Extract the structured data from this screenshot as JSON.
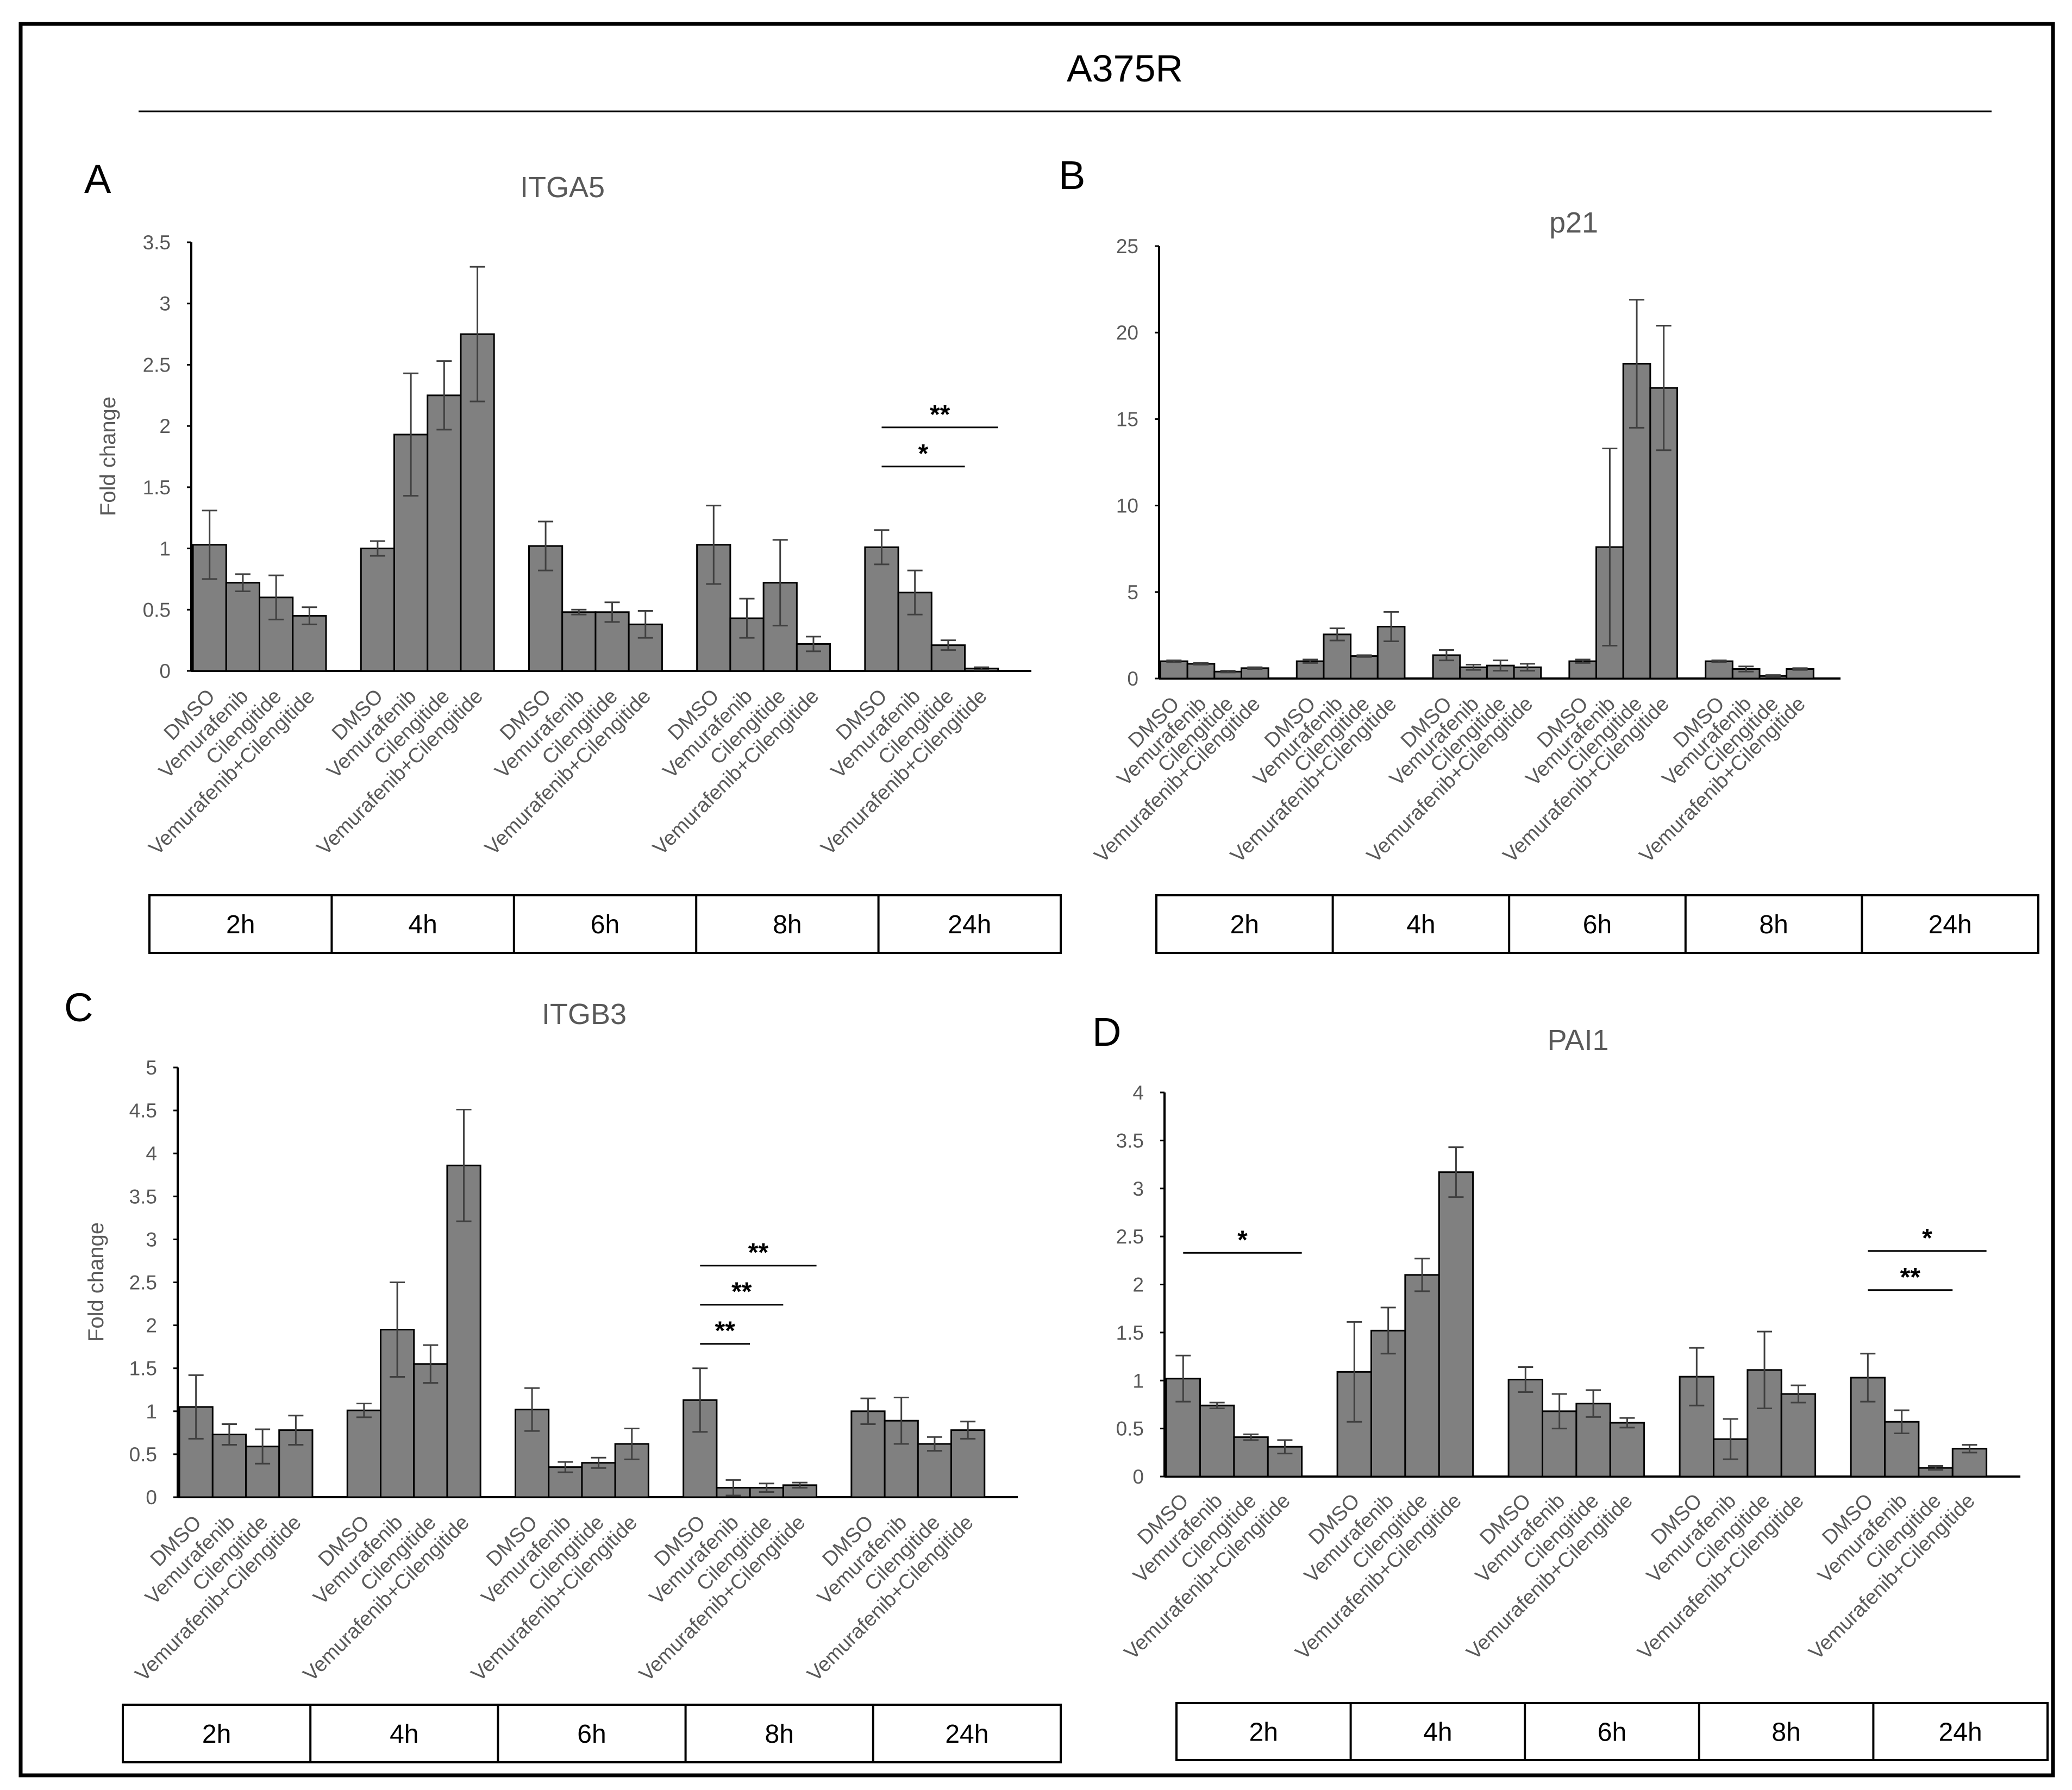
{
  "figure": {
    "title": "A375R"
  },
  "colors": {
    "bar": "#808080",
    "outline": "#000000",
    "axis": "#000000",
    "tick_text": "#595959",
    "error": "#404040"
  },
  "chart_data": [
    {
      "panel": "A",
      "type": "bar",
      "title": "ITGA5",
      "ylabel": "Fold change",
      "xlabel": "",
      "ylim": [
        0,
        3.5
      ],
      "yticks": [
        0,
        0.5,
        1,
        1.5,
        2,
        2.5,
        3,
        3.5
      ],
      "ytick_labels": [
        "0",
        "0.5",
        "1",
        "1.5",
        "2",
        "2.5",
        "3",
        "3.5"
      ],
      "groups": [
        "2h",
        "4h",
        "6h",
        "8h",
        "24h"
      ],
      "categories": [
        "DMSO",
        "Vemurafenib",
        "Cilengitide",
        "Vemurafenib+Cilengitide"
      ],
      "values": [
        [
          1.03,
          0.72,
          0.6,
          0.45
        ],
        [
          1.0,
          1.93,
          2.25,
          2.75
        ],
        [
          1.02,
          0.48,
          0.48,
          0.38
        ],
        [
          1.03,
          0.43,
          0.72,
          0.22
        ],
        [
          1.01,
          0.64,
          0.21,
          0.02
        ]
      ],
      "errors": [
        [
          0.28,
          0.07,
          0.18,
          0.07
        ],
        [
          0.06,
          0.5,
          0.28,
          0.55
        ],
        [
          0.2,
          0.02,
          0.08,
          0.11
        ],
        [
          0.32,
          0.16,
          0.35,
          0.06
        ],
        [
          0.14,
          0.18,
          0.04,
          0.01
        ]
      ],
      "significance": [
        {
          "group": 4,
          "from": 0,
          "to": 2,
          "label": "*"
        },
        {
          "group": 4,
          "from": 0,
          "to": 3,
          "label": "**"
        }
      ]
    },
    {
      "panel": "B",
      "type": "bar",
      "title": "p21",
      "ylabel": "",
      "xlabel": "",
      "ylim": [
        0,
        25
      ],
      "yticks": [
        0,
        5,
        10,
        15,
        20,
        25
      ],
      "ytick_labels": [
        "0",
        "5",
        "10",
        "15",
        "20",
        "25"
      ],
      "groups": [
        "2h",
        "4h",
        "6h",
        "8h",
        "24h"
      ],
      "categories": [
        "DMSO",
        "Vemurafenib",
        "Cilengitide",
        "Vemurafenib+Cilengitide"
      ],
      "values": [
        [
          1.0,
          0.85,
          0.4,
          0.6
        ],
        [
          1.0,
          2.55,
          1.3,
          3.0
        ],
        [
          1.35,
          0.65,
          0.75,
          0.65
        ],
        [
          1.0,
          7.6,
          18.2,
          16.8
        ],
        [
          1.0,
          0.55,
          0.15,
          0.55
        ]
      ],
      "errors": [
        [
          0.05,
          0.05,
          0.05,
          0.05
        ],
        [
          0.1,
          0.35,
          0.05,
          0.85
        ],
        [
          0.3,
          0.15,
          0.3,
          0.2
        ],
        [
          0.1,
          5.7,
          3.7,
          3.6
        ],
        [
          0.05,
          0.15,
          0.05,
          0.05
        ]
      ],
      "significance": []
    },
    {
      "panel": "C",
      "type": "bar",
      "title": "ITGB3",
      "ylabel": "Fold change",
      "xlabel": "",
      "ylim": [
        0,
        5
      ],
      "yticks": [
        0,
        0.5,
        1,
        1.5,
        2,
        2.5,
        3,
        3.5,
        4,
        4.5,
        5
      ],
      "ytick_labels": [
        "0",
        "0.5",
        "1",
        "1.5",
        "2",
        "2.5",
        "3",
        "3.5",
        "4",
        "4.5",
        "5"
      ],
      "groups": [
        "2h",
        "4h",
        "6h",
        "8h",
        "24h"
      ],
      "categories": [
        "DMSO",
        "Vemurafenib",
        "Cilengitide",
        "Vemurafenib+Cilengitide"
      ],
      "values": [
        [
          1.05,
          0.73,
          0.59,
          0.78
        ],
        [
          1.01,
          1.95,
          1.55,
          3.86
        ],
        [
          1.02,
          0.35,
          0.4,
          0.62
        ],
        [
          1.13,
          0.11,
          0.11,
          0.14
        ],
        [
          1.0,
          0.89,
          0.62,
          0.78
        ]
      ],
      "errors": [
        [
          0.37,
          0.12,
          0.2,
          0.17
        ],
        [
          0.08,
          0.55,
          0.22,
          0.65
        ],
        [
          0.25,
          0.06,
          0.06,
          0.18
        ],
        [
          0.37,
          0.09,
          0.05,
          0.03
        ],
        [
          0.15,
          0.27,
          0.08,
          0.1
        ]
      ],
      "significance": [
        {
          "group": 3,
          "from": 0,
          "to": 1,
          "label": "**"
        },
        {
          "group": 3,
          "from": 0,
          "to": 2,
          "label": "**"
        },
        {
          "group": 3,
          "from": 0,
          "to": 3,
          "label": "**"
        }
      ]
    },
    {
      "panel": "D",
      "type": "bar",
      "title": "PAI1",
      "ylabel": "",
      "xlabel": "",
      "ylim": [
        0,
        4
      ],
      "yticks": [
        0,
        0.5,
        1,
        1.5,
        2,
        2.5,
        3,
        3.5,
        4
      ],
      "ytick_labels": [
        "0",
        "0.5",
        "1",
        "1.5",
        "2",
        "2.5",
        "3",
        "3.5",
        "4"
      ],
      "groups": [
        "2h",
        "4h",
        "6h",
        "8h",
        "24h"
      ],
      "categories": [
        "DMSO",
        "Vemurafenib",
        "Cilengitide",
        "Vemurafenib+Cilengitide"
      ],
      "values": [
        [
          1.02,
          0.74,
          0.41,
          0.31
        ],
        [
          1.09,
          1.52,
          2.1,
          3.17
        ],
        [
          1.01,
          0.68,
          0.76,
          0.56
        ],
        [
          1.04,
          0.39,
          1.11,
          0.86
        ],
        [
          1.03,
          0.57,
          0.09,
          0.29
        ]
      ],
      "errors": [
        [
          0.24,
          0.03,
          0.03,
          0.07
        ],
        [
          0.52,
          0.24,
          0.17,
          0.26
        ],
        [
          0.13,
          0.18,
          0.14,
          0.05
        ],
        [
          0.3,
          0.21,
          0.4,
          0.09
        ],
        [
          0.25,
          0.12,
          0.02,
          0.04
        ]
      ],
      "significance": [
        {
          "group": 0,
          "from": 0,
          "to": 3,
          "label": "*"
        },
        {
          "group": 4,
          "from": 0,
          "to": 2,
          "label": "**"
        },
        {
          "group": 4,
          "from": 0,
          "to": 3,
          "label": "*"
        }
      ]
    }
  ]
}
